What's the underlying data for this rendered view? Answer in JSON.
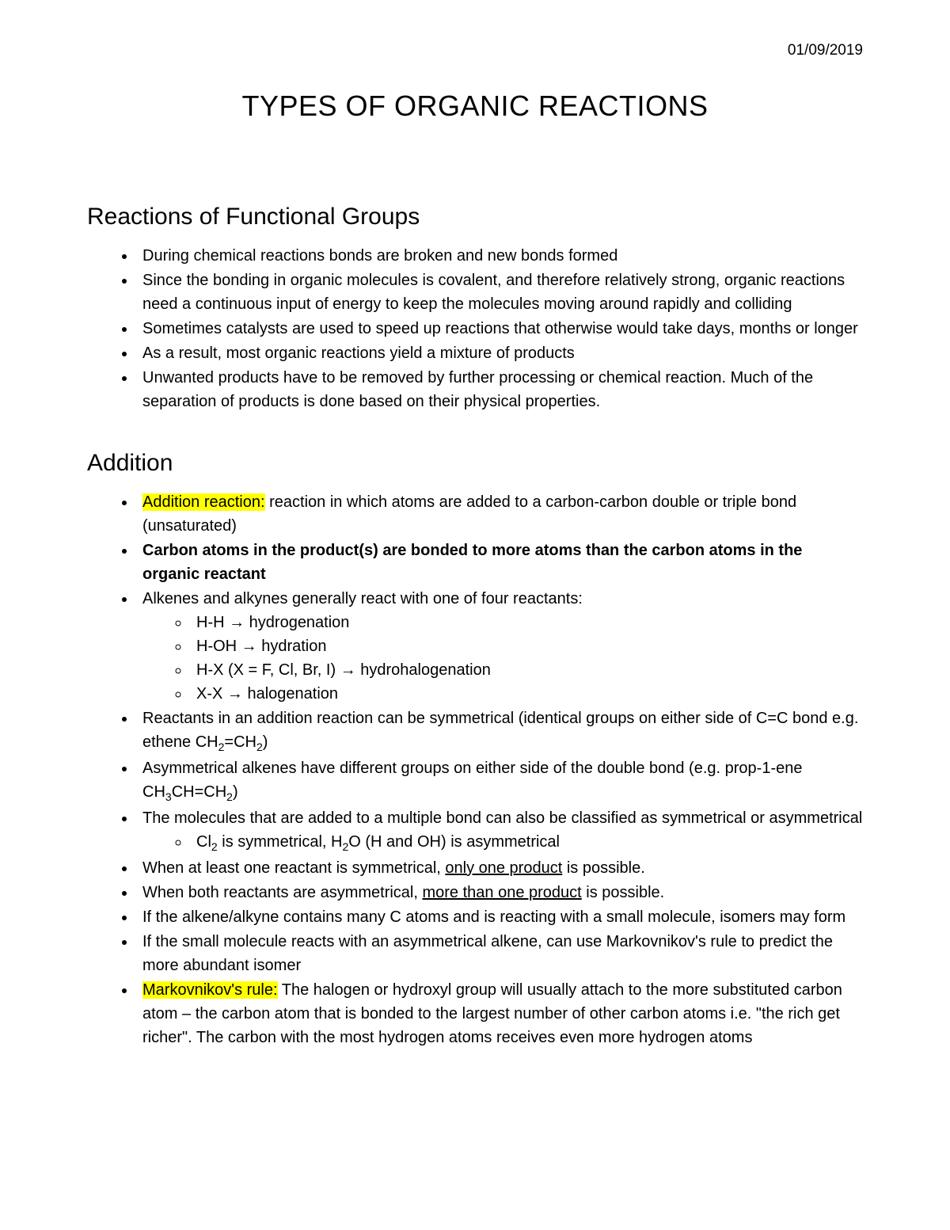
{
  "date": "01/09/2019",
  "title": "TYPES OF ORGANIC REACTIONS",
  "section1": {
    "heading": "Reactions of Functional Groups",
    "b1": "During chemical reactions bonds are broken and new bonds formed",
    "b2": "Since the bonding in organic molecules is covalent, and therefore relatively strong, organic reactions need a continuous input of energy to keep the molecules moving around rapidly and colliding",
    "b3": "Sometimes catalysts are used to speed up reactions that otherwise would take days, months or longer",
    "b4": "As a result, most organic reactions yield a mixture of products",
    "b5": "Unwanted products have to be removed by further processing or chemical reaction. Much of the separation of products is done based on their physical properties."
  },
  "section2": {
    "heading": "Addition",
    "b1_hl": "Addition reaction:",
    "b1_rest": " reaction in which atoms are added to a carbon-carbon double or triple bond (unsaturated)",
    "b2": "Carbon atoms in the product(s) are bonded to more atoms than the carbon atoms in the organic reactant",
    "b3": "Alkenes and alkynes generally react with one of four reactants:",
    "b3_s1": "H-H → hydrogenation",
    "b3_s2": "H-OH → hydration",
    "b3_s3": "H-X (X = F, Cl, Br, I) → hydrohalogenation",
    "b3_s4": "X-X → halogenation",
    "b4a": "Reactants in an addition reaction can be symmetrical (identical groups on either side of C=C bond e.g. ethene CH",
    "b4b": "=CH",
    "b4c": ")",
    "b5a": "Asymmetrical alkenes have different groups on either side of the double bond (e.g. prop-1-ene CH",
    "b5b": "CH=CH",
    "b5c": ")",
    "b6": "The molecules that are added to a multiple bond can also be classified as symmetrical or asymmetrical",
    "b6_s1a": "Cl",
    "b6_s1b": " is symmetrical, H",
    "b6_s1c": "O (H and OH) is asymmetrical",
    "b7a": "When at least one reactant is symmetrical, ",
    "b7u": "only one product",
    "b7b": " is possible.",
    "b8a": "When both reactants are asymmetrical, ",
    "b8u": "more than one product",
    "b8b": " is possible.",
    "b9": "If the alkene/alkyne contains many C atoms and is reacting with a small molecule, isomers may form",
    "b10": "If the small molecule reacts with an asymmetrical alkene, can use Markovnikov's rule to predict the more abundant isomer",
    "b11_hl": "Markovnikov's rule:",
    "b11_rest": " The halogen or hydroxyl group will usually attach to the more substituted carbon atom – the carbon atom that is bonded to the largest number of other carbon atoms i.e. \"the rich get richer\". The carbon with the most hydrogen atoms receives even more hydrogen atoms"
  },
  "sub2": "2",
  "sub3": "3"
}
